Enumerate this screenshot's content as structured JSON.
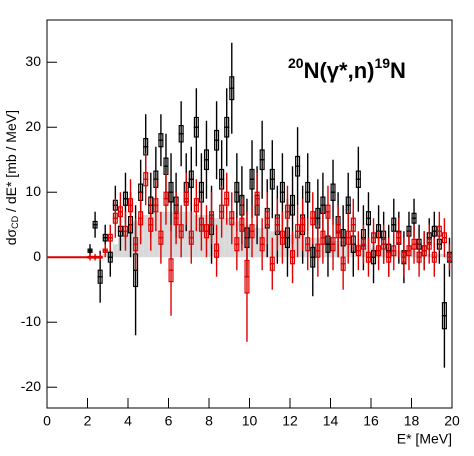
{
  "chart_data": {
    "type": "histogram",
    "annotation": {
      "parts": [
        "20",
        "N(γ*,n)",
        "19",
        "N"
      ]
    },
    "y_label": {
      "parts": [
        "dσ",
        "CD",
        " / dE* [mb / MeV]"
      ]
    },
    "x_label": "E* [MeV]",
    "xlim": [
      0,
      20
    ],
    "xticks": [
      0,
      2,
      4,
      6,
      8,
      10,
      12,
      14,
      16,
      18,
      20
    ],
    "ylim": [
      -23.2,
      36.5
    ],
    "yticks": [
      -20,
      -10,
      0,
      10,
      20,
      30
    ],
    "bins": [
      2,
      2.25,
      2.5,
      2.75,
      3,
      3.25,
      3.5,
      3.75,
      4,
      4.25,
      4.5,
      4.75,
      5,
      5.25,
      5.5,
      5.75,
      6,
      6.25,
      6.5,
      6.75,
      7,
      7.25,
      7.5,
      7.75,
      8,
      8.25,
      8.5,
      8.75,
      9,
      9.25,
      9.5,
      9.75,
      10,
      10.25,
      10.5,
      10.75,
      11,
      11.25,
      11.5,
      11.75,
      12,
      12.25,
      12.5,
      12.75,
      13,
      13.25,
      13.5,
      13.75,
      14,
      14.25,
      14.5,
      14.75,
      15,
      15.25,
      15.5,
      15.75,
      16,
      16.25,
      16.5,
      16.75,
      17,
      17.25,
      17.5,
      17.75,
      18,
      18.25,
      18.5,
      18.75,
      19,
      19.25,
      19.5,
      19.75,
      20
    ],
    "series": [
      {
        "color": "#d9d9d9",
        "style": "fill",
        "values": [
          0,
          0,
          0,
          0.5,
          1,
          2,
          3,
          4,
          5,
          5.5,
          6,
          6.5,
          7,
          7,
          7,
          7,
          7,
          7,
          7,
          7,
          7,
          6.5,
          6.5,
          6.5,
          6,
          6,
          6,
          6,
          5.5,
          5.5,
          5,
          5,
          5,
          4.5,
          4.5,
          4.5,
          4,
          4,
          4,
          4,
          3.5,
          3.5,
          3.5,
          3,
          3,
          3,
          3,
          2.5,
          2.5,
          2.5,
          2.5,
          2,
          2,
          2,
          2,
          2,
          1.5,
          1.5,
          1.5,
          1.5,
          1,
          1,
          1,
          1,
          1,
          1,
          0.5,
          0.5,
          0.5,
          0.5,
          0.5,
          0.5
        ]
      },
      {
        "color": "#000000",
        "style": "errors",
        "values": [
          1,
          5,
          -3,
          3,
          0,
          8,
          4,
          9,
          5,
          -2,
          10,
          17,
          8,
          12,
          18,
          14,
          10,
          8,
          19,
          10,
          12,
          20,
          10,
          15,
          5,
          18,
          12,
          20,
          26,
          10,
          8,
          3,
          12,
          8,
          15,
          6,
          12,
          5,
          10,
          3,
          8,
          14,
          5,
          10,
          0,
          6,
          8,
          2,
          10,
          5,
          3,
          8,
          2,
          12,
          3,
          6,
          0,
          4,
          3,
          1,
          5,
          3,
          0,
          4,
          6,
          2,
          1,
          3,
          4,
          2,
          -9,
          0
        ],
        "errors": [
          1,
          2,
          4,
          2,
          3,
          3,
          3,
          4,
          5,
          10,
          5,
          5,
          5,
          5,
          4,
          5,
          6,
          5,
          5,
          6,
          5,
          6,
          6,
          6,
          6,
          6,
          6,
          6,
          7,
          6,
          6,
          6,
          6,
          6,
          6,
          6,
          6,
          6,
          6,
          6,
          6,
          6,
          6,
          6,
          6,
          6,
          5,
          5,
          5,
          5,
          5,
          5,
          5,
          5,
          5,
          4,
          4,
          4,
          4,
          4,
          4,
          4,
          4,
          3,
          3,
          3,
          3,
          3,
          3,
          3,
          8,
          3
        ]
      },
      {
        "color": "#e00000",
        "style": "errors",
        "values": [
          0,
          0,
          0,
          1,
          3,
          6,
          7,
          4,
          8,
          2,
          6,
          12,
          5,
          8,
          3,
          9,
          -2,
          6,
          4,
          9,
          3,
          8,
          5,
          4,
          6,
          1,
          7,
          9,
          6,
          2,
          5,
          -3,
          4,
          9,
          2,
          6,
          -1,
          5,
          3,
          7,
          0,
          4,
          5,
          2,
          6,
          1,
          3,
          7,
          2,
          4,
          -1,
          3,
          5,
          1,
          2,
          0,
          3,
          1,
          2,
          0,
          1,
          3,
          0,
          1,
          2,
          0,
          1,
          2,
          0,
          4,
          3,
          0
        ],
        "errors": [
          0.5,
          0.5,
          0.5,
          1,
          2,
          3,
          3,
          3,
          4,
          4,
          4,
          4,
          4,
          4,
          4,
          4,
          7,
          4,
          4,
          4,
          4,
          4,
          4,
          4,
          4,
          4,
          4,
          4,
          4,
          4,
          4,
          10,
          4,
          4,
          4,
          4,
          4,
          4,
          4,
          4,
          4,
          4,
          4,
          4,
          4,
          4,
          4,
          4,
          4,
          4,
          4,
          4,
          4,
          3,
          3,
          3,
          3,
          3,
          3,
          3,
          3,
          3,
          3,
          3,
          3,
          3,
          3,
          3,
          3,
          3,
          3,
          2
        ]
      }
    ]
  }
}
